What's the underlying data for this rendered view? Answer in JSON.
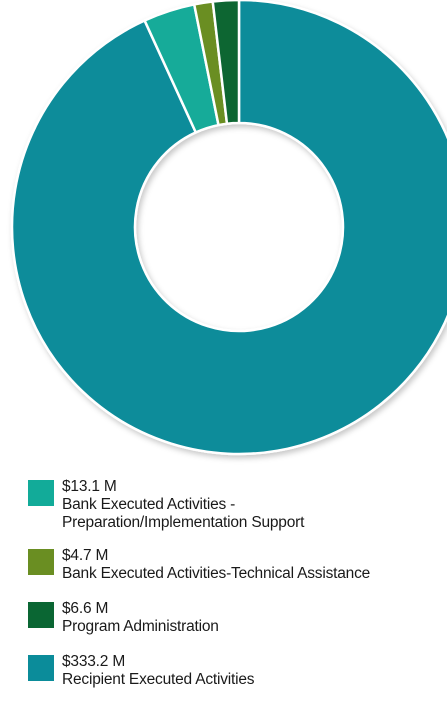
{
  "chart_data": {
    "type": "pie",
    "donut": true,
    "unit": "$M",
    "series": [
      {
        "amount_label": "$13.1 M",
        "label_lines": [
          "Bank Executed Activities -",
          "Preparation/Implementation Support"
        ],
        "value": 13.1,
        "color": "#12ab99"
      },
      {
        "amount_label": "$4.7 M",
        "label_lines": [
          "Bank Executed Activities-Technical Assistance"
        ],
        "value": 4.7,
        "color": "#6a8e22"
      },
      {
        "amount_label": "$6.6 M",
        "label_lines": [
          "Program Administration"
        ],
        "value": 6.6,
        "color": "#0a6633"
      },
      {
        "amount_label": "$333.2 M",
        "label_lines": [
          "Recipient Executed Activities"
        ],
        "value": 333.2,
        "color": "#0b8c9a"
      }
    ],
    "legend_position": "bottom-left"
  }
}
